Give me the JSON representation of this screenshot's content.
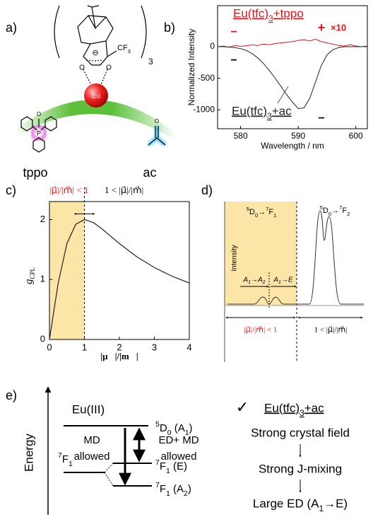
{
  "panel_a": {
    "label": "a)",
    "cf3": "CF3",
    "count": "3",
    "oxygen_left": "O",
    "oxygen_right": "O",
    "charge": "⊖",
    "metal": "Eu",
    "phosphorus": "P",
    "tppo_oxygen": "O",
    "ac_oxygen": "O",
    "tppo": "tppo",
    "ac": "ac"
  },
  "chart_data": [
    {
      "type": "line",
      "panel": "b)",
      "xlabel": "Wavelength / nm",
      "ylabel": "Normalized Intensity",
      "x": [
        576,
        577,
        578,
        579,
        580,
        581,
        582,
        583,
        584,
        585,
        586,
        587,
        588,
        589,
        590,
        591,
        592,
        593,
        594,
        595,
        596,
        597,
        598,
        599,
        600,
        601,
        602
      ],
      "series": [
        {
          "name": "Eu(tfc)3+tppo",
          "color": "#e8141b",
          "values": [
            0,
            10,
            -10,
            20,
            5,
            15,
            30,
            20,
            40,
            30,
            50,
            60,
            70,
            80,
            100,
            110,
            90,
            120,
            80,
            60,
            40,
            20,
            10,
            30,
            10,
            0,
            10
          ]
        },
        {
          "name": "Eu(tfc)3+ac",
          "color": "#222222",
          "values": [
            0,
            0,
            -5,
            -15,
            -30,
            -60,
            -110,
            -180,
            -270,
            -380,
            -500,
            -630,
            -760,
            -880,
            -980,
            -970,
            -820,
            -560,
            -300,
            -130,
            -50,
            -15,
            0,
            0,
            0,
            0,
            0
          ]
        }
      ],
      "annotations": [
        "−",
        "+",
        "×10",
        "−",
        "−"
      ],
      "xlim": [
        576,
        602
      ],
      "xticks": [
        580,
        590,
        600
      ],
      "ylim": [
        -1300,
        650
      ],
      "yticks": [
        0,
        -500,
        -1000
      ]
    },
    {
      "type": "line",
      "panel": "c)",
      "xlabel": "|μ⃗|/|m⃗|",
      "ylabel": {
        "main": "g",
        "sub": "CPL"
      },
      "region_labels": [
        "|μ⃗|/|m⃗| < 1",
        "1 < |μ⃗|/|m⃗|"
      ],
      "threshold": 1,
      "x": [
        0,
        0.25,
        0.5,
        0.75,
        1,
        1.25,
        1.5,
        1.75,
        2,
        2.5,
        3,
        3.5,
        4
      ],
      "series": [
        {
          "color": "#222222",
          "values": [
            0,
            0.941,
            1.6,
            1.92,
            2,
            1.951,
            1.846,
            1.723,
            1.6,
            1.379,
            1.2,
            1.057,
            0.941
          ]
        }
      ],
      "xlim": [
        0,
        4
      ],
      "xticks": [
        0,
        1,
        2,
        3,
        4
      ],
      "ylim": [
        0,
        2.3
      ],
      "yticks": [
        0,
        1,
        2
      ]
    }
  ],
  "panel_d": {
    "label": "d)",
    "ylabel": "Intensity",
    "transitions": [
      "5D0→7F1",
      "5D0→7F2"
    ],
    "sublevels": [
      "A1→A2",
      "A1→E"
    ],
    "region_labels": [
      "|μ⃗|/|m⃗| < 1",
      "1 < |μ⃗|/|m⃗|"
    ]
  },
  "panel_e": {
    "label": "e)",
    "axis": "Energy",
    "ion": "Eu(III)",
    "upper_level": "5D0 (A1)",
    "ground": "7F1",
    "sublevel_e": "7F1 (E)",
    "sublevel_a2": "7F1 (A2)",
    "md": [
      "MD",
      "allowed"
    ],
    "edmd": [
      "ED+ MD",
      "allowed"
    ],
    "check": "✓",
    "complex": "Eu(tfc)3+ac",
    "steps": [
      "Strong crystal field",
      "Strong J-mixing",
      "Large ED (A1→E)"
    ]
  }
}
